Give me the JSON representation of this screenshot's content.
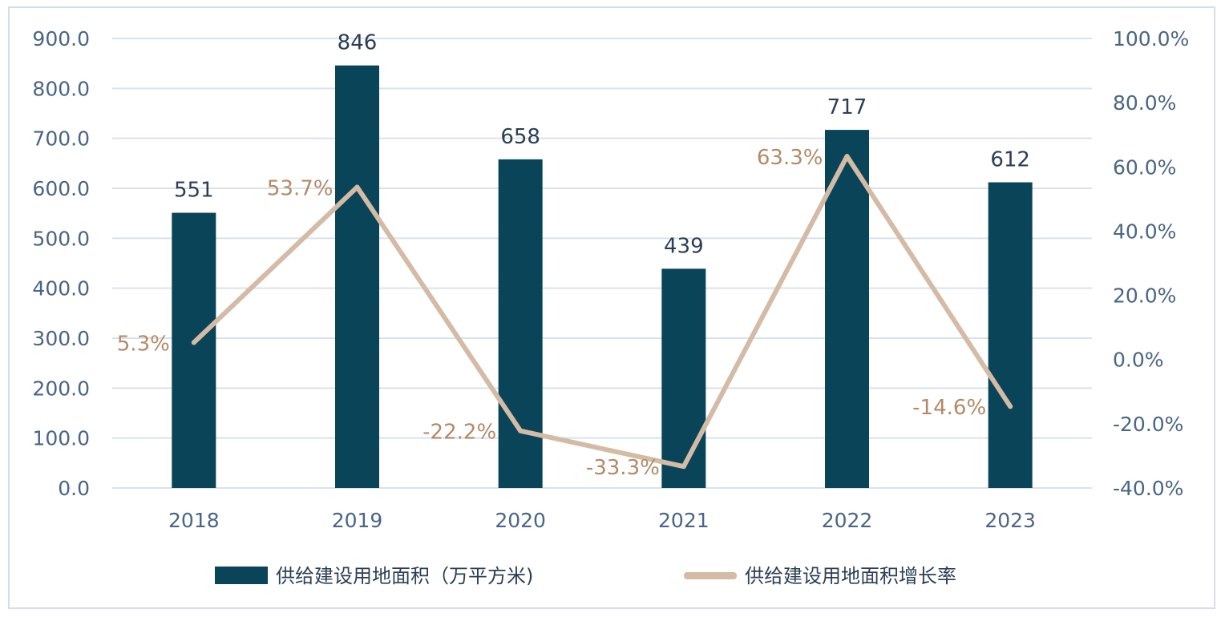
{
  "chart_data": {
    "type": "bar",
    "categories": [
      "2018",
      "2019",
      "2020",
      "2021",
      "2022",
      "2023"
    ],
    "series": [
      {
        "name": "供给建设用地面积（万平方米)",
        "type": "bar",
        "axis": "left",
        "values": [
          551,
          846,
          658,
          439,
          717,
          612
        ],
        "labels": [
          "551",
          "846",
          "658",
          "439",
          "717",
          "612"
        ],
        "color": "#0a4459"
      },
      {
        "name": "供给建设用地面积增长率",
        "type": "line",
        "axis": "right",
        "values": [
          5.3,
          53.7,
          -22.2,
          -33.3,
          63.3,
          -14.6
        ],
        "labels": [
          "5.3%",
          "53.7%",
          "-22.2%",
          "-33.3%",
          "63.3%",
          "-14.6%"
        ],
        "color": "#d4bba6"
      }
    ],
    "y_left": {
      "range": [
        0,
        900
      ],
      "ticks": [
        "0.0",
        "100.0",
        "200.0",
        "300.0",
        "400.0",
        "500.0",
        "600.0",
        "700.0",
        "800.0",
        "900.0"
      ]
    },
    "y_right": {
      "range": [
        -40,
        100
      ],
      "ticks": [
        "-40.0%",
        "-20.0%",
        "0.0%",
        "20.0%",
        "40.0%",
        "60.0%",
        "80.0%",
        "100.0%"
      ]
    },
    "grid": true,
    "legend_position": "bottom",
    "colors": {
      "gridline": "#d9e2ec",
      "tick_text": "#4a6585",
      "bar_label": "#2c3e55",
      "line_label": "#b48a66"
    }
  }
}
